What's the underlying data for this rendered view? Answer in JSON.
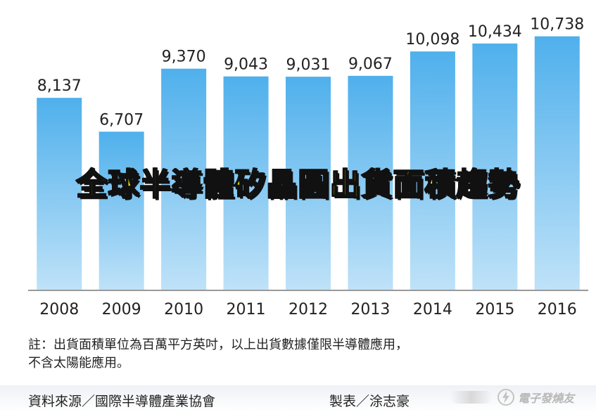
{
  "chart_data": {
    "type": "bar",
    "title": "全球半導體矽晶圓出貨面積趨勢",
    "categories": [
      "2008",
      "2009",
      "2010",
      "2011",
      "2012",
      "2013",
      "2014",
      "2015",
      "2016"
    ],
    "values": [
      8137,
      6707,
      9370,
      9043,
      9031,
      9067,
      10098,
      10434,
      10738
    ],
    "value_labels": [
      "8,137",
      "6,707",
      "9,370",
      "9,043",
      "9,031",
      "9,067",
      "10,098",
      "10,434",
      "10,738"
    ],
    "ylim": [
      0,
      11500
    ],
    "grid": false,
    "colors": {
      "bar_top": "#4fb0ec",
      "bar_bottom": "#bfe2f8",
      "baseline": "#999999"
    }
  },
  "note": {
    "line1": "註：出貨面積單位為百萬平方英吋，以上出貨數據僅限半導體應用，",
    "line2": "不含太陽能應用。"
  },
  "footer": {
    "source": "資料來源／國際半導體產業協會",
    "maker": "製表／涂志豪",
    "watermark": "電子發燒友"
  }
}
